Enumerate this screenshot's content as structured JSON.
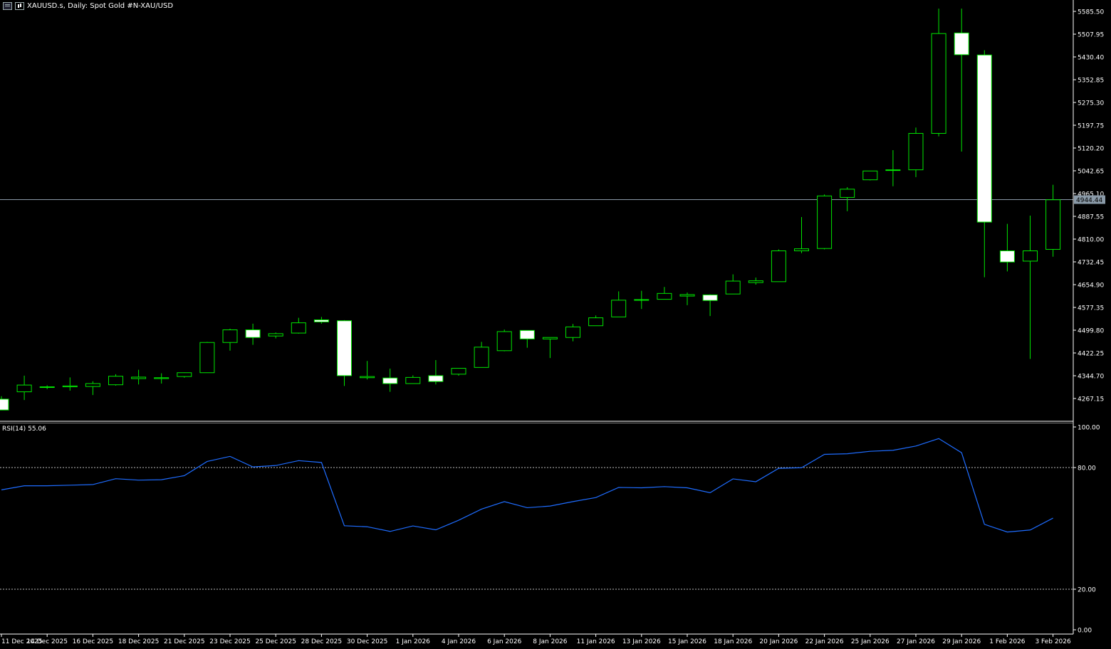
{
  "header": {
    "symbol_title": "XAUUSD.s, Daily:  Spot Gold #N-XAU/USD",
    "icons": [
      "window-menu-icon",
      "chart-type-icon"
    ]
  },
  "price_label": "4944.44",
  "rsi": {
    "name": "RSI(14)",
    "value": "55.06"
  },
  "chart_data": [
    {
      "type": "candlestick",
      "title": "XAUUSD.s, Daily:  Spot Gold #N-XAU/USD",
      "x_tick_labels": [
        "11 Dec 2025",
        "14 Dec 2025",
        "16 Dec 2025",
        "18 Dec 2025",
        "21 Dec 2025",
        "23 Dec 2025",
        "25 Dec 2025",
        "28 Dec 2025",
        "30 Dec 2025",
        "1 Jan 2026",
        "4 Jan 2026",
        "6 Jan 2026",
        "8 Jan 2026",
        "11 Jan 2026",
        "13 Jan 2026",
        "15 Jan 2026",
        "18 Jan 2026",
        "20 Jan 2026",
        "22 Jan 2026",
        "25 Jan 2026",
        "27 Jan 2026",
        "29 Jan 2026",
        "1 Feb 2026",
        "3 Feb 2026"
      ],
      "y_tick_labels": [
        "5585.50",
        "5507.95",
        "5430.40",
        "5352.85",
        "5275.30",
        "5197.75",
        "5120.20",
        "5042.65",
        "4965.10",
        "4887.55",
        "4810.00",
        "4732.45",
        "4654.90",
        "4577.35",
        "4499.80",
        "4422.25",
        "4344.70",
        "4267.15"
      ],
      "ylim": [
        4230,
        5600
      ],
      "current_price": 4944.44,
      "candles": [
        {
          "o": 4265,
          "h": 4275,
          "l": 4230,
          "c": 4228
        },
        {
          "o": 4290,
          "h": 4345,
          "l": 4262,
          "c": 4313
        },
        {
          "o": 4305,
          "h": 4312,
          "l": 4299,
          "c": 4307
        },
        {
          "o": 4307,
          "h": 4339,
          "l": 4294,
          "c": 4310
        },
        {
          "o": 4308,
          "h": 4326,
          "l": 4279,
          "c": 4318
        },
        {
          "o": 4314,
          "h": 4350,
          "l": 4311,
          "c": 4343
        },
        {
          "o": 4335,
          "h": 4365,
          "l": 4315,
          "c": 4340
        },
        {
          "o": 4335,
          "h": 4353,
          "l": 4318,
          "c": 4338
        },
        {
          "o": 4342,
          "h": 4356,
          "l": 4338,
          "c": 4355
        },
        {
          "o": 4355,
          "h": 4460,
          "l": 4355,
          "c": 4458
        },
        {
          "o": 4458,
          "h": 4505,
          "l": 4430,
          "c": 4501
        },
        {
          "o": 4501,
          "h": 4522,
          "l": 4450,
          "c": 4475
        },
        {
          "o": 4480,
          "h": 4492,
          "l": 4472,
          "c": 4488
        },
        {
          "o": 4490,
          "h": 4542,
          "l": 4488,
          "c": 4525
        },
        {
          "o": 4535,
          "h": 4545,
          "l": 4522,
          "c": 4528
        },
        {
          "o": 4532,
          "h": 4534,
          "l": 4310,
          "c": 4345
        },
        {
          "o": 4338,
          "h": 4395,
          "l": 4332,
          "c": 4342
        },
        {
          "o": 4337,
          "h": 4369,
          "l": 4290,
          "c": 4318
        },
        {
          "o": 4318,
          "h": 4346,
          "l": 4318,
          "c": 4339
        },
        {
          "o": 4345,
          "h": 4398,
          "l": 4315,
          "c": 4325
        },
        {
          "o": 4350,
          "h": 4370,
          "l": 4345,
          "c": 4370
        },
        {
          "o": 4373,
          "h": 4460,
          "l": 4373,
          "c": 4442
        },
        {
          "o": 4430,
          "h": 4502,
          "l": 4428,
          "c": 4495
        },
        {
          "o": 4499,
          "h": 4499,
          "l": 4440,
          "c": 4470
        },
        {
          "o": 4470,
          "h": 4475,
          "l": 4405,
          "c": 4475
        },
        {
          "o": 4475,
          "h": 4521,
          "l": 4462,
          "c": 4511
        },
        {
          "o": 4515,
          "h": 4550,
          "l": 4515,
          "c": 4542
        },
        {
          "o": 4545,
          "h": 4632,
          "l": 4545,
          "c": 4602
        },
        {
          "o": 4602,
          "h": 4634,
          "l": 4572,
          "c": 4604
        },
        {
          "o": 4605,
          "h": 4647,
          "l": 4605,
          "c": 4625
        },
        {
          "o": 4616,
          "h": 4628,
          "l": 4585,
          "c": 4621
        },
        {
          "o": 4620,
          "h": 4622,
          "l": 4548,
          "c": 4601
        },
        {
          "o": 4623,
          "h": 4690,
          "l": 4623,
          "c": 4667
        },
        {
          "o": 4662,
          "h": 4679,
          "l": 4655,
          "c": 4668
        },
        {
          "o": 4665,
          "h": 4775,
          "l": 4665,
          "c": 4770
        },
        {
          "o": 4770,
          "h": 4885,
          "l": 4762,
          "c": 4777
        },
        {
          "o": 4778,
          "h": 4962,
          "l": 4775,
          "c": 4957
        },
        {
          "o": 4952,
          "h": 4987,
          "l": 4905,
          "c": 4980
        },
        {
          "o": 5012,
          "h": 5038,
          "l": 5010,
          "c": 5042
        },
        {
          "o": 5046,
          "h": 5113,
          "l": 4990,
          "c": 5044
        },
        {
          "o": 5046,
          "h": 5190,
          "l": 5021,
          "c": 5170
        },
        {
          "o": 5170,
          "h": 5595,
          "l": 5160,
          "c": 5510
        },
        {
          "o": 5512,
          "h": 5595,
          "l": 5108,
          "c": 5438
        },
        {
          "o": 5437,
          "h": 5453,
          "l": 4680,
          "c": 4868
        },
        {
          "o": 4770,
          "h": 4862,
          "l": 4700,
          "c": 4732
        },
        {
          "o": 4735,
          "h": 4890,
          "l": 4402,
          "c": 4770
        },
        {
          "o": 4775,
          "h": 4995,
          "l": 4750,
          "c": 4944
        }
      ]
    },
    {
      "type": "line",
      "title": "RSI(14) 55.06",
      "y_tick_labels": [
        "100.00",
        "80.00",
        "20.00",
        "0.00"
      ],
      "ylim": [
        0,
        100
      ],
      "levels": [
        80,
        20
      ],
      "series": [
        {
          "values": [
            69,
            71,
            71,
            71.3,
            71.6,
            74.5,
            73.8,
            74,
            76,
            83,
            85.5,
            80.3,
            81,
            83.4,
            82.5,
            51.3,
            50.8,
            48.5,
            51.2,
            49.3,
            54,
            59.5,
            63.2,
            60.2,
            61,
            63.2,
            65.2,
            70.2,
            70,
            70.6,
            70,
            67.6,
            74.4,
            73,
            79.6,
            79.9,
            86.5,
            86.8,
            88,
            88.5,
            90.6,
            94.3,
            87.3,
            52,
            48.2,
            49.2,
            55.06
          ]
        }
      ]
    }
  ]
}
